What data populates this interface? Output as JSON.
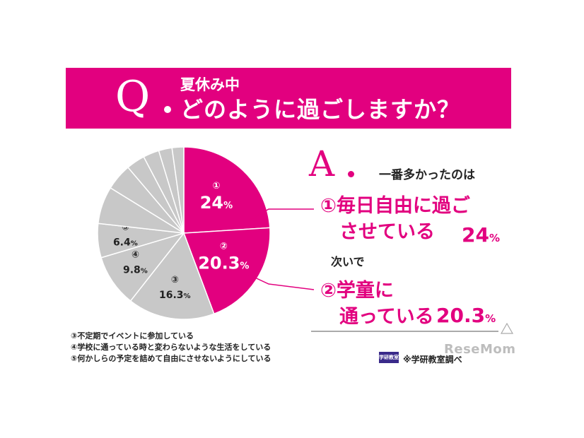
{
  "question": {
    "prefix": "Q",
    "line1": "夏休み中",
    "line2": "どのように過ごしますか？"
  },
  "answer": {
    "prefix": "A",
    "intro": "一番多かったのは",
    "first_line1": "①毎日自由に過ご",
    "first_line2": "させている",
    "first_pct": "24",
    "next_label": "次いで",
    "second_line1": "②学童に",
    "second_line2": "通っている",
    "second_pct": "20.3",
    "pct_sign": "%"
  },
  "legend": [
    "③不定期でイベントに参加している",
    "④学校に通っている時と変わらないような生活をしている",
    "⑤何かしらの予定を詰めて自由にさせないようにしている"
  ],
  "source": "※学研教室調べ",
  "logo_text": "学研教室",
  "watermark": "ReseMom",
  "colors": {
    "accent": "#e2007f",
    "grey_slice": "#c8c8c8",
    "slice_border": "#ffffff"
  },
  "chart_data": {
    "type": "pie",
    "start_angle_deg": 0,
    "slices": [
      {
        "marker": "①",
        "value": 24,
        "label": "24",
        "color": "#e2007f"
      },
      {
        "marker": "②",
        "value": 20.3,
        "label": "20.3",
        "color": "#e2007f"
      },
      {
        "marker": "③",
        "value": 16.3,
        "label": "16.3",
        "color": "#c8c8c8"
      },
      {
        "marker": "④",
        "value": 9.8,
        "label": "9.8",
        "color": "#c8c8c8"
      },
      {
        "marker": "⑤",
        "value": 6.4,
        "label": "6.4",
        "color": "#c8c8c8"
      },
      {
        "marker": "",
        "value": 7.0,
        "label": "",
        "color": "#c8c8c8"
      },
      {
        "marker": "",
        "value": 5.0,
        "label": "",
        "color": "#c8c8c8"
      },
      {
        "marker": "",
        "value": 3.5,
        "label": "",
        "color": "#c8c8c8"
      },
      {
        "marker": "",
        "value": 3.0,
        "label": "",
        "color": "#c8c8c8"
      },
      {
        "marker": "",
        "value": 2.5,
        "label": "",
        "color": "#c8c8c8"
      },
      {
        "marker": "",
        "value": 2.2,
        "label": "",
        "color": "#c8c8c8"
      }
    ],
    "pct_sign": "%"
  }
}
